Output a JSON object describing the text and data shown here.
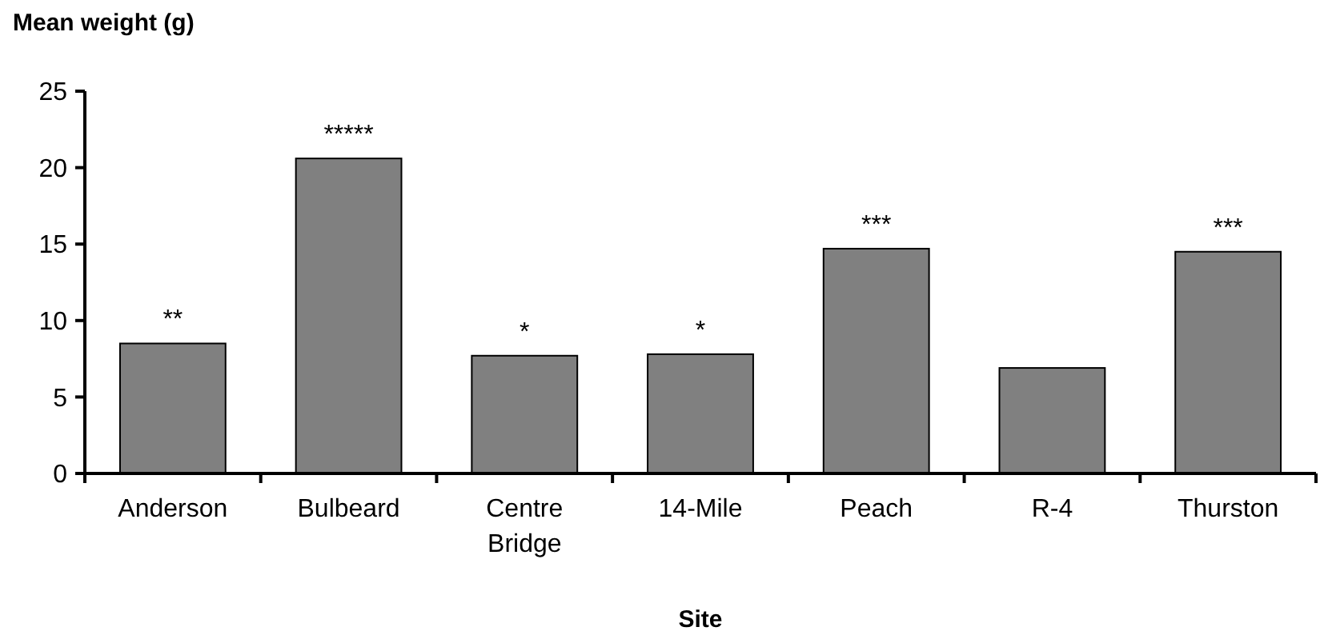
{
  "chart_data": {
    "type": "bar",
    "ylabel": "Mean weight (g)",
    "xlabel": "Site",
    "categories": [
      "Anderson",
      "Bulbeard",
      "Centre Bridge",
      "14-Mile",
      "Peach",
      "R-4",
      "Thurston"
    ],
    "values": [
      8.5,
      20.6,
      7.7,
      7.8,
      14.7,
      6.9,
      14.5
    ],
    "color": "#808080",
    "ylim": [
      0,
      25
    ],
    "yticks": [
      0,
      5,
      10,
      15,
      20,
      25
    ],
    "grid": false,
    "annotations": [
      {
        "text": "**",
        "x": "Anderson",
        "y": 8.5
      },
      {
        "text": "*****",
        "x": "Bulbeard",
        "y": 20.6
      },
      {
        "text": "*",
        "x": "Centre Bridge",
        "y": 7.7
      },
      {
        "text": "*",
        "x": "14-Mile",
        "y": 7.8
      },
      {
        "text": "***",
        "x": "Peach",
        "y": 14.7
      },
      {
        "text": "***",
        "x": "Thurston",
        "y": 14.5
      }
    ]
  }
}
